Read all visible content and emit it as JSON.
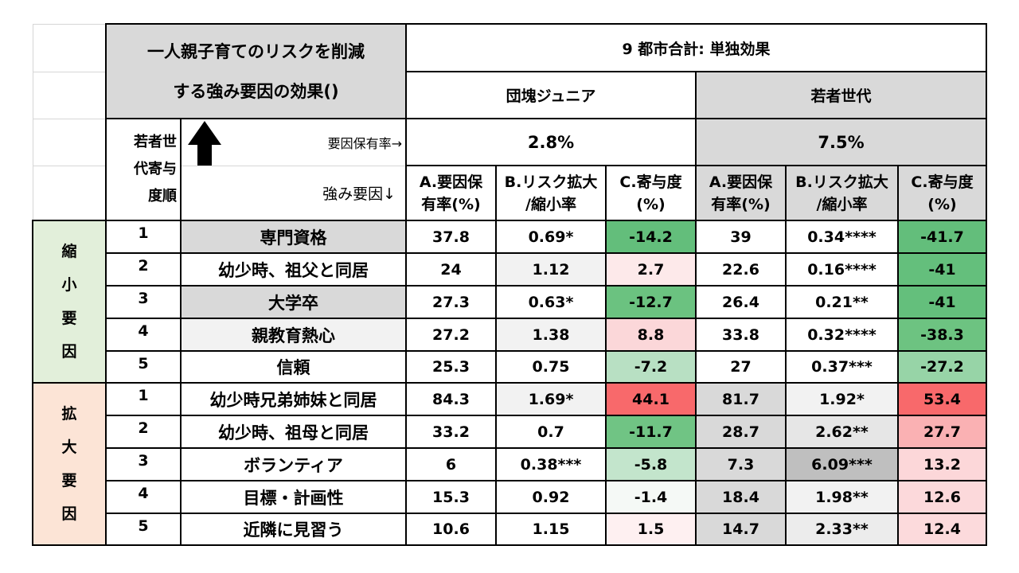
{
  "title_line1": "一人親子育てのリスクを削減",
  "title_line2": "する強み要因の効果()",
  "scope_header": "9 都市合計: 単独効果",
  "groups": {
    "dankai": "団塊ジュニア",
    "wakamono": "若者世代"
  },
  "rank_header": [
    "若者世",
    "代寄与",
    "度順"
  ],
  "factor_rate_label": "要因保有率→",
  "strength_factor_label": "強み要因↓",
  "overall_rate": {
    "dankai": "2.8%",
    "wakamono": "7.5%"
  },
  "col_headers": {
    "a": [
      "A.要因保",
      "有率(%)"
    ],
    "b": [
      "B.リスク拡大",
      "/縮小率"
    ],
    "c": [
      "C.寄与度",
      "(%)"
    ]
  },
  "sections": {
    "shrink": [
      "縮",
      "小",
      "要",
      "因"
    ],
    "expand": [
      "拡",
      "大",
      "要",
      "因"
    ]
  },
  "rows": [
    {
      "rank": "1",
      "factor": "専門資格",
      "d_a": "37.8",
      "d_b": "0.69*",
      "d_c": "-14.2",
      "w_a": "39",
      "w_b": "0.34****",
      "w_c": "-41.7"
    },
    {
      "rank": "2",
      "factor": "幼少時、祖父と同居",
      "d_a": "24",
      "d_b": "1.12",
      "d_c": "2.7",
      "w_a": "22.6",
      "w_b": "0.16****",
      "w_c": "-41"
    },
    {
      "rank": "3",
      "factor": "大学卒",
      "d_a": "27.3",
      "d_b": "0.63*",
      "d_c": "-12.7",
      "w_a": "26.4",
      "w_b": "0.21**",
      "w_c": "-41"
    },
    {
      "rank": "4",
      "factor": "親教育熱心",
      "d_a": "27.2",
      "d_b": "1.38",
      "d_c": "8.8",
      "w_a": "33.8",
      "w_b": "0.32****",
      "w_c": "-38.3"
    },
    {
      "rank": "5",
      "factor": "信頼",
      "d_a": "25.3",
      "d_b": "0.75",
      "d_c": "-7.2",
      "w_a": "27",
      "w_b": "0.37***",
      "w_c": "-27.2"
    },
    {
      "rank": "1",
      "factor": "幼少時兄弟姉妹と同居",
      "d_a": "84.3",
      "d_b": "1.69*",
      "d_c": "44.1",
      "w_a": "81.7",
      "w_b": "1.92*",
      "w_c": "53.4"
    },
    {
      "rank": "2",
      "factor": "幼少時、祖母と同居",
      "d_a": "33.2",
      "d_b": "0.7",
      "d_c": "-11.7",
      "w_a": "28.7",
      "w_b": "2.62**",
      "w_c": "27.7"
    },
    {
      "rank": "3",
      "factor": "ボランティア",
      "d_a": "6",
      "d_b": "0.38***",
      "d_c": "-5.8",
      "w_a": "7.3",
      "w_b": "6.09***",
      "w_c": "13.2"
    },
    {
      "rank": "4",
      "factor": "目標・計画性",
      "d_a": "15.3",
      "d_b": "0.92",
      "d_c": "-1.4",
      "w_a": "18.4",
      "w_b": "1.98**",
      "w_c": "12.6"
    },
    {
      "rank": "5",
      "factor": "近隣に見習う",
      "d_a": "10.6",
      "d_b": "1.15",
      "d_c": "1.5",
      "w_a": "14.7",
      "w_b": "2.33**",
      "w_c": "12.4"
    }
  ],
  "colors": {
    "d_c": [
      "#63be7b",
      "#fde9ea",
      "#6bc280",
      "#fbd7d9",
      "#b8e0c3",
      "#f8696b",
      "#70c484",
      "#c3e5cc",
      "#f5f9f6",
      "#fef0f1"
    ],
    "w_c": [
      "#63be7b",
      "#64bf7c",
      "#64bf7c",
      "#6dc381",
      "#97d4a7",
      "#f8696b",
      "#fab1b3",
      "#fcd7d9",
      "#fcd9db",
      "#fcdadc"
    ],
    "w_b": [
      "#ffffff",
      "#ffffff",
      "#ffffff",
      "#ffffff",
      "#ffffff",
      "#f2f2f2",
      "#e6e6e6",
      "#bfbfbf",
      "#f2f2f2",
      "#ececec"
    ],
    "d_b": [
      "#ffffff",
      "#f2f2f2",
      "#ffffff",
      "#f2f2f2",
      "#ffffff",
      "#f2f2f2",
      "#ffffff",
      "#ffffff",
      "#ffffff",
      "#ffffff"
    ],
    "factor_bg": [
      "#d9d9d9",
      "#ffffff",
      "#d9d9d9",
      "#f2f2f2",
      "#ffffff",
      "#ffffff",
      "#ffffff",
      "#ffffff",
      "#ffffff",
      "#ffffff"
    ],
    "w_a_bg": [
      "#ffffff",
      "#ffffff",
      "#ffffff",
      "#ffffff",
      "#ffffff",
      "#d9d9d9",
      "#d9d9d9",
      "#d9d9d9",
      "#d9d9d9",
      "#d9d9d9"
    ]
  }
}
